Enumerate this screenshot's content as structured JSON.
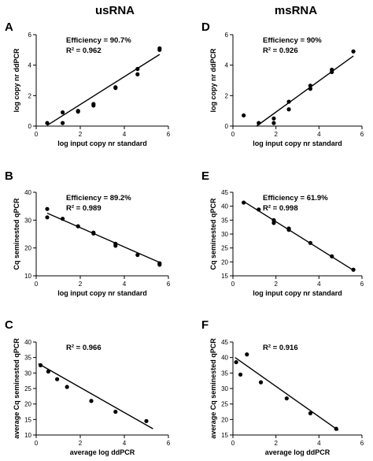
{
  "column_titles": [
    "usRNA",
    "msRNA"
  ],
  "panels": [
    {
      "label": "A"
    },
    {
      "label": "D"
    },
    {
      "label": "B"
    },
    {
      "label": "E"
    },
    {
      "label": "C"
    },
    {
      "label": "F"
    }
  ],
  "chart_data": [
    {
      "panel": "A",
      "type": "scatter",
      "xlabel": "log input copy nr standard",
      "ylabel": "log copy nr ddPCR",
      "xlim": [
        0,
        6
      ],
      "ylim": [
        0,
        6
      ],
      "xticks": [
        0,
        2,
        4,
        6
      ],
      "yticks": [
        0,
        2,
        4,
        6
      ],
      "annotations": [
        "Efficiency = 90.7%",
        "R² = 0.962"
      ],
      "points": [
        [
          0.5,
          0.2
        ],
        [
          1.2,
          0.9
        ],
        [
          1.2,
          0.2
        ],
        [
          1.9,
          0.95
        ],
        [
          1.9,
          1.0
        ],
        [
          2.6,
          1.35
        ],
        [
          2.6,
          1.45
        ],
        [
          3.6,
          2.5
        ],
        [
          3.6,
          2.55
        ],
        [
          4.6,
          3.4
        ],
        [
          4.6,
          3.75
        ],
        [
          5.6,
          5.0
        ],
        [
          5.6,
          5.1
        ]
      ],
      "fit": [
        [
          0.5,
          0.05
        ],
        [
          5.6,
          4.7
        ]
      ]
    },
    {
      "panel": "D",
      "type": "scatter",
      "xlabel": "log input copy nr standard",
      "ylabel": "log copy nr ddPCR",
      "xlim": [
        0,
        6
      ],
      "ylim": [
        0,
        6
      ],
      "xticks": [
        0,
        2,
        4,
        6
      ],
      "yticks": [
        0,
        2,
        4,
        6
      ],
      "annotations": [
        "Efficiency = 90%",
        "R² = 0.926"
      ],
      "points": [
        [
          0.5,
          0.7
        ],
        [
          1.2,
          0.2
        ],
        [
          1.9,
          0.2
        ],
        [
          1.9,
          0.5
        ],
        [
          2.6,
          1.1
        ],
        [
          2.6,
          1.6
        ],
        [
          3.6,
          2.45
        ],
        [
          3.6,
          2.65
        ],
        [
          4.6,
          3.55
        ],
        [
          4.6,
          3.7
        ],
        [
          5.6,
          4.9
        ]
      ],
      "fit": [
        [
          1.1,
          0.0
        ],
        [
          5.6,
          4.6
        ]
      ]
    },
    {
      "panel": "B",
      "type": "scatter",
      "xlabel": "log input copy nr standard",
      "ylabel": "Cq seminested qPCR",
      "xlim": [
        0,
        6
      ],
      "ylim": [
        10,
        40
      ],
      "xticks": [
        0,
        2,
        4,
        6
      ],
      "yticks": [
        10,
        20,
        30,
        40
      ],
      "annotations": [
        "Efficiency = 89.2%",
        "R² = 0.989"
      ],
      "points": [
        [
          0.5,
          34.0
        ],
        [
          0.5,
          31.0
        ],
        [
          1.2,
          30.5
        ],
        [
          1.9,
          27.8
        ],
        [
          2.6,
          25.5
        ],
        [
          2.6,
          25.2
        ],
        [
          3.6,
          21.5
        ],
        [
          3.6,
          20.8
        ],
        [
          4.6,
          17.5
        ],
        [
          5.6,
          14.5
        ],
        [
          5.6,
          14.0
        ]
      ],
      "fit": [
        [
          0.5,
          32.5
        ],
        [
          5.6,
          14.8
        ]
      ]
    },
    {
      "panel": "E",
      "type": "scatter",
      "xlabel": "log input copy nr standard",
      "ylabel": "Cq seminested qPCR",
      "xlim": [
        0,
        6
      ],
      "ylim": [
        15,
        45
      ],
      "xticks": [
        0,
        2,
        4,
        6
      ],
      "yticks": [
        15,
        20,
        25,
        30,
        35,
        40,
        45
      ],
      "annotations": [
        "Efficiency = 61.9%",
        "R² = 0.998"
      ],
      "points": [
        [
          0.5,
          41.3
        ],
        [
          1.2,
          38.8
        ],
        [
          1.9,
          35.0
        ],
        [
          1.9,
          34.0
        ],
        [
          2.6,
          32.0
        ],
        [
          2.6,
          31.5
        ],
        [
          3.6,
          26.8
        ],
        [
          4.6,
          22.0
        ],
        [
          5.6,
          17.2
        ]
      ],
      "fit": [
        [
          0.5,
          41.7
        ],
        [
          5.6,
          17.0
        ]
      ]
    },
    {
      "panel": "C",
      "type": "scatter",
      "xlabel": "average log ddPCR",
      "ylabel": "average Cq seminested qPCR",
      "xlim": [
        0,
        6
      ],
      "ylim": [
        10,
        40
      ],
      "xticks": [
        0,
        2,
        4,
        6
      ],
      "yticks": [
        10,
        15,
        20,
        25,
        30,
        35,
        40
      ],
      "annotations": [
        "R² = 0.966"
      ],
      "points": [
        [
          0.2,
          32.5
        ],
        [
          0.55,
          30.5
        ],
        [
          0.95,
          28.0
        ],
        [
          1.4,
          25.5
        ],
        [
          2.5,
          21.0
        ],
        [
          3.6,
          17.5
        ],
        [
          5.0,
          14.5
        ]
      ],
      "fit": [
        [
          0.1,
          33.0
        ],
        [
          5.3,
          12.0
        ]
      ]
    },
    {
      "panel": "F",
      "type": "scatter",
      "xlabel": "average log ddPCR",
      "ylabel": "average Cq seminested qPCR",
      "xlim": [
        0,
        6
      ],
      "ylim": [
        15,
        45
      ],
      "xticks": [
        0,
        2,
        4,
        6
      ],
      "yticks": [
        15,
        20,
        25,
        30,
        35,
        40,
        45
      ],
      "annotations": [
        "R² = 0.916"
      ],
      "points": [
        [
          0.15,
          38.5
        ],
        [
          0.35,
          34.5
        ],
        [
          0.65,
          41.0
        ],
        [
          1.3,
          32.0
        ],
        [
          2.5,
          26.8
        ],
        [
          3.6,
          22.0
        ],
        [
          4.8,
          17.0
        ]
      ],
      "fit": [
        [
          0.1,
          40.0
        ],
        [
          4.9,
          16.5
        ]
      ]
    }
  ]
}
